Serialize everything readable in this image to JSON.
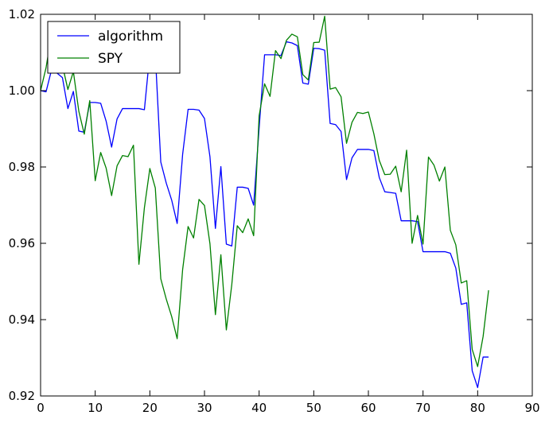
{
  "chart_data": {
    "type": "line",
    "title": "",
    "xlabel": "",
    "ylabel": "",
    "xlim": [
      0,
      90
    ],
    "ylim": [
      0.92,
      1.02
    ],
    "xticks": [
      0,
      10,
      20,
      30,
      40,
      50,
      60,
      70,
      80,
      90
    ],
    "xtick_labels": [
      "0",
      "10",
      "20",
      "30",
      "40",
      "50",
      "60",
      "70",
      "80",
      "90"
    ],
    "yticks": [
      0.92,
      0.94,
      0.96,
      0.98,
      1.0,
      1.02
    ],
    "ytick_labels": [
      "0.92",
      "0.94",
      "0.96",
      "0.98",
      "1.00",
      "1.02"
    ],
    "grid": false,
    "legend_position": "top-left",
    "series": [
      {
        "name": "algorithm",
        "color": "#0000ff",
        "x": [
          0,
          1,
          2,
          3,
          4,
          5,
          6,
          7,
          8,
          9,
          10,
          11,
          12,
          13,
          14,
          15,
          16,
          17,
          18,
          19,
          20,
          21,
          22,
          23,
          24,
          25,
          26,
          27,
          28,
          29,
          30,
          31,
          32,
          33,
          34,
          35,
          36,
          37,
          38,
          39,
          40,
          41,
          42,
          43,
          44,
          45,
          46,
          47,
          48,
          49,
          50,
          51,
          52,
          53,
          54,
          55,
          56,
          57,
          58,
          59,
          60,
          61,
          62,
          63,
          64,
          65,
          66,
          67,
          68,
          69,
          70,
          71,
          72,
          73,
          74,
          75,
          76,
          77,
          78,
          79,
          80,
          81,
          82
        ],
        "y": [
          1.0,
          0.9997,
          1.0054,
          1.0046,
          1.0034,
          0.9953,
          0.9998,
          0.9894,
          0.9891,
          0.9969,
          0.9969,
          0.9967,
          0.992,
          0.9852,
          0.9926,
          0.9953,
          0.9953,
          0.9953,
          0.9953,
          0.995,
          1.0097,
          1.0095,
          0.9813,
          0.9758,
          0.9713,
          0.9652,
          0.9833,
          0.9951,
          0.9951,
          0.9949,
          0.9927,
          0.9827,
          0.9639,
          0.9801,
          0.9598,
          0.9593,
          0.9747,
          0.9747,
          0.9744,
          0.97,
          0.9902,
          1.0094,
          1.0094,
          1.0094,
          1.0092,
          1.0128,
          1.0125,
          1.0118,
          1.002,
          1.0017,
          1.0111,
          1.011,
          1.0106,
          0.9914,
          0.9911,
          0.9893,
          0.9767,
          0.9824,
          0.9846,
          0.9846,
          0.9846,
          0.9843,
          0.9772,
          0.9735,
          0.9733,
          0.9731,
          0.9659,
          0.9659,
          0.9659,
          0.9657,
          0.9578,
          0.9578,
          0.9578,
          0.9578,
          0.9578,
          0.9574,
          0.9535,
          0.944,
          0.9444,
          0.9266,
          0.9222,
          0.9302,
          0.9302
        ]
      },
      {
        "name": "SPY",
        "color": "#008000",
        "x": [
          0,
          1,
          2,
          3,
          4,
          5,
          6,
          7,
          8,
          9,
          10,
          11,
          12,
          13,
          14,
          15,
          16,
          17,
          18,
          19,
          20,
          21,
          22,
          23,
          24,
          25,
          26,
          27,
          28,
          29,
          30,
          31,
          32,
          33,
          34,
          35,
          36,
          37,
          38,
          39,
          40,
          41,
          42,
          43,
          44,
          45,
          46,
          47,
          48,
          49,
          50,
          51,
          52,
          53,
          54,
          55,
          56,
          57,
          58,
          59,
          60,
          61,
          62,
          63,
          64,
          65,
          66,
          67,
          68,
          69,
          70,
          71,
          72,
          73,
          74,
          75,
          76,
          77,
          78,
          79,
          80,
          81,
          82
        ],
        "y": [
          1.0,
          1.006,
          1.0148,
          1.0083,
          1.0066,
          1.0003,
          1.005,
          0.9946,
          0.9886,
          0.9974,
          0.9764,
          0.9838,
          0.9797,
          0.9725,
          0.9803,
          0.983,
          0.9827,
          0.9857,
          0.9545,
          0.9693,
          0.9796,
          0.9745,
          0.9507,
          0.9454,
          0.9408,
          0.935,
          0.9531,
          0.9644,
          0.9614,
          0.9715,
          0.9699,
          0.9599,
          0.9413,
          0.957,
          0.9373,
          0.9492,
          0.9646,
          0.9628,
          0.9664,
          0.962,
          0.9934,
          1.0018,
          0.9985,
          1.0105,
          1.0084,
          1.0132,
          1.0148,
          1.0141,
          1.0042,
          1.0028,
          1.0126,
          1.0127,
          1.0195,
          1.0004,
          1.0008,
          0.9984,
          0.9862,
          0.9917,
          0.9943,
          0.994,
          0.9944,
          0.9887,
          0.9817,
          0.978,
          0.9781,
          0.9802,
          0.9735,
          0.9844,
          0.96,
          0.9673,
          0.9598,
          0.9826,
          0.9805,
          0.9763,
          0.98,
          0.9634,
          0.9596,
          0.9496,
          0.9502,
          0.9322,
          0.9277,
          0.9356,
          0.9477
        ]
      }
    ]
  }
}
